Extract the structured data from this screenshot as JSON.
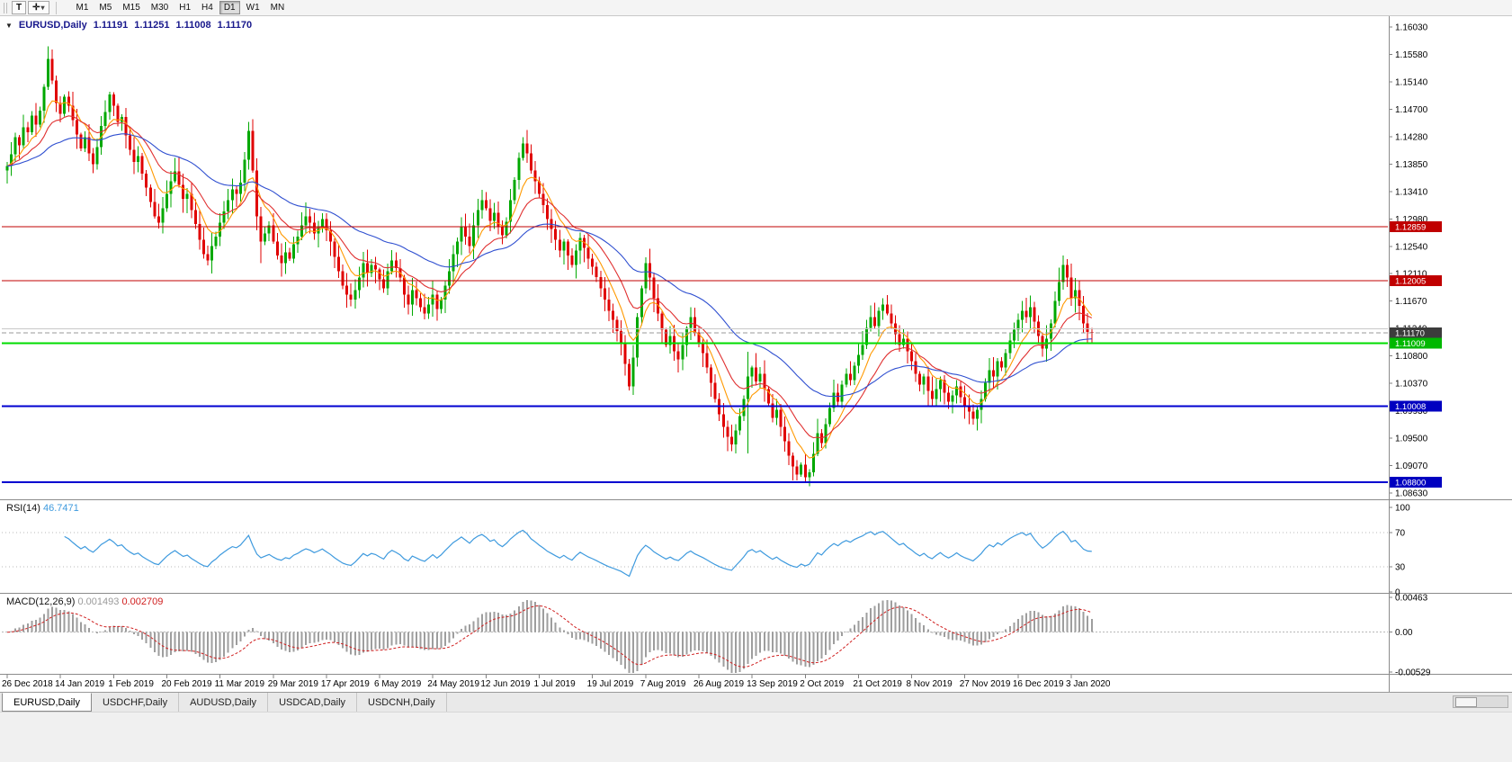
{
  "toolbar": {
    "text_tool": "T",
    "cursor_tool_icon": "✛",
    "cursor_tool_caret": "▾",
    "timeframes": [
      "M1",
      "M5",
      "M15",
      "M30",
      "H1",
      "H4",
      "D1",
      "W1",
      "MN"
    ],
    "active_timeframe": "D1"
  },
  "chart_header": {
    "collapse_icon": "▼",
    "symbol": "EURUSD,Daily",
    "open": "1.11191",
    "high": "1.11251",
    "low": "1.11008",
    "close": "1.11170"
  },
  "price_axis_labels": [
    "1.16030",
    "1.15580",
    "1.15140",
    "1.14700",
    "1.14280",
    "1.13850",
    "1.13410",
    "1.12980",
    "1.12540",
    "1.12110",
    "1.11670",
    "1.11240",
    "1.10800",
    "1.10370",
    "1.09930",
    "1.09500",
    "1.09070",
    "1.08630"
  ],
  "hlines": [
    {
      "price": 1.12859,
      "label": "1.12859",
      "color": "#c00000",
      "box": "#c00000",
      "width": 1,
      "style": "solid"
    },
    {
      "price": 1.12005,
      "label": "1.12005",
      "color": "#c00000",
      "box": "#c00000",
      "width": 1,
      "style": "solid"
    },
    {
      "price": 1.1124,
      "label": "",
      "color": "#c8c8c8",
      "box": "",
      "width": 1,
      "style": "solid"
    },
    {
      "price": 1.1117,
      "label": "1.11170",
      "color": "#9a9a9a",
      "box": "#3c3c3c",
      "width": 1,
      "style": "dash"
    },
    {
      "price": 1.11009,
      "label": "1.11009",
      "color": "#00dd00",
      "box": "#00b800",
      "width": 2,
      "style": "solid"
    },
    {
      "price": 1.10008,
      "label": "1.10008",
      "color": "#0000d0",
      "box": "#0000c0",
      "width": 2,
      "style": "solid"
    },
    {
      "price": 1.088,
      "label": "1.08800",
      "color": "#0000d0",
      "box": "#0000c0",
      "width": 2,
      "style": "solid"
    }
  ],
  "rsi_panel": {
    "label": "RSI(14)",
    "value": "46.7471",
    "period": 14,
    "levels": [
      70,
      30
    ],
    "axis_labels": [
      "100",
      "70",
      "30",
      "0"
    ],
    "line_color": "#3e9ade"
  },
  "macd_panel": {
    "label": "MACD(12,26,9)",
    "main_value": "0.001493",
    "signal_value": "0.002709",
    "fast": 12,
    "slow": 26,
    "signal": 9,
    "axis_labels": [
      "0.00463",
      "0.00",
      "-0.00529"
    ],
    "axis_max": 0.00463,
    "axis_min": -0.00529,
    "hist_color": "#9e9e9e",
    "signal_color": "#d02020"
  },
  "date_axis": [
    "26 Dec 2018",
    "14 Jan 2019",
    "1 Feb 2019",
    "20 Feb 2019",
    "11 Mar 2019",
    "29 Mar 2019",
    "17 Apr 2019",
    "6 May 2019",
    "24 May 2019",
    "12 Jun 2019",
    "1 Jul 2019",
    "19 Jul 2019",
    "7 Aug 2019",
    "26 Aug 2019",
    "13 Sep 2019",
    "2 Oct 2019",
    "21 Oct 2019",
    "8 Nov 2019",
    "27 Nov 2019",
    "16 Dec 2019",
    "3 Jan 2020"
  ],
  "tabs": [
    {
      "label": "EURUSD,Daily",
      "active": true
    },
    {
      "label": "USDCHF,Daily",
      "active": false
    },
    {
      "label": "AUDUSD,Daily",
      "active": false
    },
    {
      "label": "USDCAD,Daily",
      "active": false
    },
    {
      "label": "USDCNH,Daily",
      "active": false
    }
  ],
  "chart_data": {
    "type": "candlestick",
    "symbol": "EURUSD",
    "timeframe": "Daily",
    "title": "EURUSD,Daily",
    "last_ohlc": {
      "open": 1.11191,
      "high": 1.11251,
      "low": 1.11008,
      "close": 1.1117
    },
    "price_axis": {
      "min": 1.0863,
      "max": 1.1603
    },
    "label_interval": 13,
    "up_color": "#00a800",
    "down_color": "#e00000",
    "moving_averages": [
      {
        "period": 8,
        "color": "#ff9900"
      },
      {
        "period": 17,
        "color": "#e03030"
      },
      {
        "period": 45,
        "color": "#2f4fd0"
      }
    ],
    "first_open": 1.1375,
    "closes": [
      1.1382,
      1.1401,
      1.1428,
      1.1415,
      1.1444,
      1.1436,
      1.1462,
      1.1448,
      1.147,
      1.1508,
      1.1552,
      1.1518,
      1.1482,
      1.1465,
      1.1492,
      1.1478,
      1.1455,
      1.1432,
      1.141,
      1.1428,
      1.1402,
      1.1385,
      1.1412,
      1.1446,
      1.1468,
      1.1496,
      1.1478,
      1.1452,
      1.146,
      1.1431,
      1.1408,
      1.1389,
      1.1398,
      1.137,
      1.1348,
      1.1325,
      1.1302,
      1.1292,
      1.1315,
      1.1338,
      1.1358,
      1.1374,
      1.1352,
      1.133,
      1.1338,
      1.1312,
      1.129,
      1.1265,
      1.1242,
      1.1232,
      1.1255,
      1.127,
      1.1292,
      1.131,
      1.1328,
      1.1345,
      1.1338,
      1.1356,
      1.1392,
      1.1438,
      1.1375,
      1.1302,
      1.1262,
      1.1275,
      1.1288,
      1.1262,
      1.124,
      1.1228,
      1.1245,
      1.1235,
      1.1258,
      1.127,
      1.1288,
      1.1302,
      1.1292,
      1.1275,
      1.1285,
      1.1298,
      1.128,
      1.1262,
      1.1238,
      1.1215,
      1.1192,
      1.1178,
      1.117,
      1.1185,
      1.1205,
      1.1228,
      1.1212,
      1.1225,
      1.1218,
      1.1202,
      1.1188,
      1.1215,
      1.1232,
      1.122,
      1.1205,
      1.1178,
      1.1162,
      1.1185,
      1.1172,
      1.1158,
      1.1148,
      1.1162,
      1.1178,
      1.1155,
      1.117,
      1.1192,
      1.1215,
      1.1242,
      1.1262,
      1.1285,
      1.127,
      1.1255,
      1.1288,
      1.1312,
      1.1328,
      1.1315,
      1.1295,
      1.1308,
      1.1285,
      1.1272,
      1.1294,
      1.1328,
      1.136,
      1.1395,
      1.1418,
      1.1402,
      1.1375,
      1.1358,
      1.1338,
      1.132,
      1.1298,
      1.1282,
      1.1265,
      1.1248,
      1.1262,
      1.124,
      1.1225,
      1.1248,
      1.1268,
      1.1252,
      1.1235,
      1.1222,
      1.1206,
      1.1188,
      1.117,
      1.1152,
      1.1138,
      1.112,
      1.1102,
      1.1068,
      1.1032,
      1.1078,
      1.1142,
      1.1188,
      1.1228,
      1.1205,
      1.1172,
      1.1148,
      1.1122,
      1.1098,
      1.1112,
      1.1088,
      1.1075,
      1.1098,
      1.1125,
      1.1142,
      1.1118,
      1.1102,
      1.1085,
      1.1062,
      1.1038,
      1.1012,
      1.0988,
      1.0968,
      1.0952,
      1.094,
      1.0962,
      1.0985,
      1.1012,
      1.1048,
      1.1062,
      1.104,
      1.1052,
      1.1028,
      1.1005,
      1.0982,
      1.0995,
      1.0968,
      1.0945,
      1.0922,
      1.0905,
      1.0892,
      1.0908,
      1.0888,
      1.0896,
      1.0925,
      1.0958,
      1.0942,
      1.0972,
      1.0998,
      1.1022,
      1.1008,
      1.1035,
      1.1052,
      1.1042,
      1.1065,
      1.1082,
      1.1098,
      1.1125,
      1.1142,
      1.1128,
      1.1152,
      1.1162,
      1.1148,
      1.1132,
      1.1115,
      1.1098,
      1.1108,
      1.1088,
      1.1072,
      1.1052,
      1.1035,
      1.1048,
      1.1025,
      1.1012,
      1.1028,
      1.1042,
      1.1022,
      1.1008,
      1.1018,
      1.1032,
      1.1015,
      1.1002,
      1.0992,
      1.0981,
      1.0995,
      1.1012,
      1.1038,
      1.1058,
      1.1048,
      1.1072,
      1.1062,
      1.1085,
      1.1105,
      1.1122,
      1.1138,
      1.1152,
      1.1142,
      1.1158,
      1.1135,
      1.1112,
      1.1092,
      1.1108,
      1.1132,
      1.1168,
      1.1198,
      1.1225,
      1.1205,
      1.1172,
      1.1185,
      1.116,
      1.1132,
      1.1119,
      1.1117
    ],
    "wick_overrides": {
      "10": {
        "h": 1.1572
      },
      "59": {
        "h": 1.1452
      },
      "62": {
        "l": 1.1228
      },
      "126": {
        "h": 1.1428
      },
      "152": {
        "l": 1.1026
      },
      "181": {
        "h": 1.1087,
        "l": 1.0926
      },
      "195": {
        "l": 1.0879
      },
      "258": {
        "h": 1.124
      },
      "265": {
        "h": 1.1125,
        "l": 1.1101
      }
    }
  }
}
